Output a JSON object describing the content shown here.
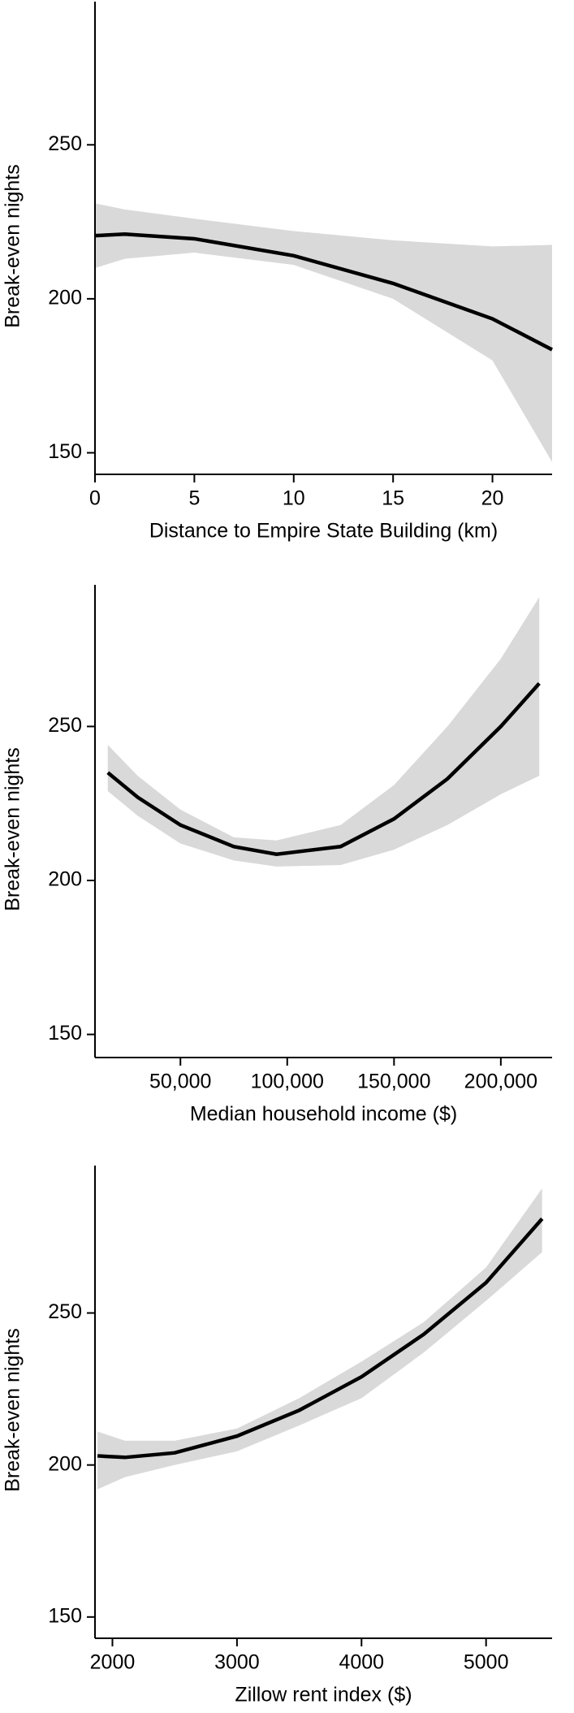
{
  "chart_data": [
    {
      "type": "line",
      "y_label": "Break-even nights",
      "x_label": "Distance to Empire State Building (km)",
      "x": [
        0,
        1.5,
        5,
        10,
        15,
        20,
        23
      ],
      "values": [
        220.5,
        221,
        219.5,
        214,
        205,
        193.5,
        183.5
      ],
      "upper": [
        231,
        229,
        226,
        222,
        219,
        217,
        217.5
      ],
      "lower": [
        210,
        213,
        215,
        211,
        200,
        180,
        147
      ],
      "color": "#000000",
      "band_color": "#d9d9d9",
      "xlim": [
        0,
        23
      ],
      "ylim": [
        143,
        296.5
      ],
      "xticks": [
        0,
        5,
        10,
        15,
        20
      ],
      "yticks": [
        150,
        200,
        250
      ]
    },
    {
      "type": "line",
      "y_label": "Break-even nights",
      "x_label": "Median household income ($)",
      "x": [
        16000,
        30000,
        50000,
        75000,
        95000,
        125000,
        150000,
        175000,
        200000,
        218000
      ],
      "values": [
        235,
        227,
        218,
        211,
        208.5,
        211,
        220,
        233,
        250,
        264
      ],
      "upper": [
        244,
        234,
        223,
        214,
        213,
        218,
        231,
        250,
        272,
        292
      ],
      "lower": [
        229,
        221,
        212,
        206.5,
        204.5,
        205,
        210,
        218,
        228,
        234
      ],
      "color": "#000000",
      "band_color": "#d9d9d9",
      "xlim": [
        10000,
        224000
      ],
      "ylim": [
        142.5,
        296
      ],
      "xticks": [
        {
          "value": 50000,
          "label": "50,000"
        },
        {
          "value": 100000,
          "label": "100,000"
        },
        {
          "value": 150000,
          "label": "150,000"
        },
        {
          "value": 200000,
          "label": "200,000"
        }
      ],
      "yticks": [
        150,
        200,
        250
      ]
    },
    {
      "type": "line",
      "y_label": "Break-even nights",
      "x_label": "Zillow rent index ($)",
      "x": [
        1880,
        2100,
        2500,
        3000,
        3500,
        4000,
        4500,
        5000,
        5450
      ],
      "values": [
        203,
        202.5,
        204,
        209.5,
        218,
        229,
        243,
        260,
        281
      ],
      "upper": [
        211,
        208,
        208,
        212,
        222,
        234,
        247,
        265,
        291
      ],
      "lower": [
        192,
        196,
        200,
        204.5,
        213,
        222,
        237,
        254,
        270
      ],
      "color": "#000000",
      "band_color": "#d9d9d9",
      "xlim": [
        1860,
        5530
      ],
      "ylim": [
        143,
        298.5
      ],
      "xticks": [
        2000,
        3000,
        4000,
        5000
      ],
      "yticks": [
        150,
        200,
        250
      ]
    }
  ]
}
